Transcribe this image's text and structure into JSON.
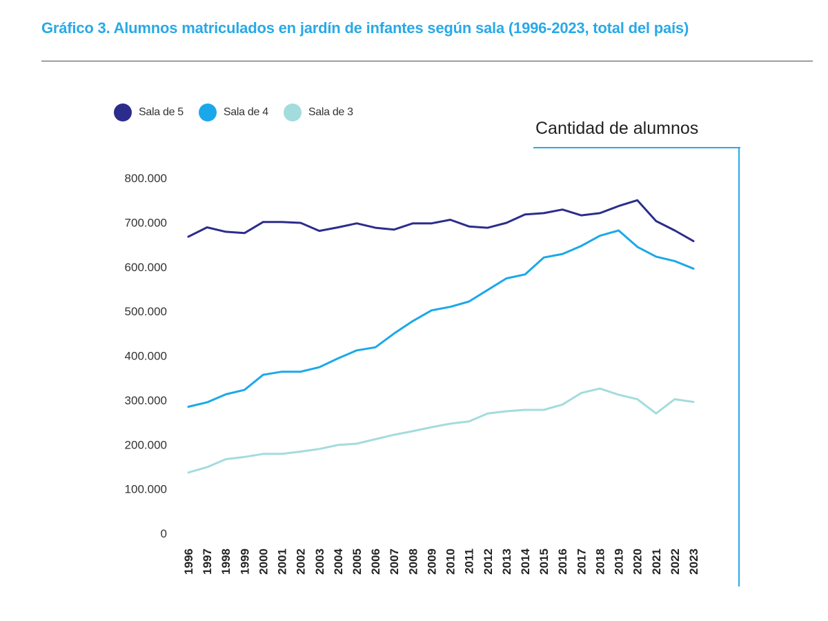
{
  "title": "Gráfico 3. Alumnos matriculados en jardín de infantes según sala (1996-2023, total del país)",
  "box_title": "Cantidad de alumnos",
  "colors": {
    "title": "#29a9e6",
    "frame": "#29a9e6"
  },
  "chart_data": {
    "type": "line",
    "title": "Gráfico 3. Alumnos matriculados en jardín de infantes según sala (1996-2023, total del país)",
    "ylabel": "Cantidad de alumnos",
    "xlabel": "",
    "ylim": [
      0,
      800000
    ],
    "yticks": [
      0,
      100000,
      200000,
      300000,
      400000,
      500000,
      600000,
      700000,
      800000
    ],
    "ytick_labels": [
      "0",
      "100.000",
      "200.000",
      "300.000",
      "400.000",
      "500.000",
      "600.000",
      "700.000",
      "800.000"
    ],
    "categories": [
      "1996",
      "1997",
      "1998",
      "1999",
      "2000",
      "2001",
      "2002",
      "2003",
      "2004",
      "2005",
      "2006",
      "2007",
      "2008",
      "2009",
      "2010",
      "2011",
      "2012",
      "2013",
      "2014",
      "2015",
      "2016",
      "2017",
      "2018",
      "2019",
      "2020",
      "2021",
      "2022",
      "2023"
    ],
    "grid": false,
    "legend_position": "top-left",
    "series": [
      {
        "name": "Sala de 5",
        "color": "#2c2c8c",
        "values": [
          668000,
          689000,
          679000,
          676000,
          701000,
          701000,
          699000,
          681000,
          689000,
          698000,
          688000,
          684000,
          698000,
          698000,
          706000,
          691000,
          688000,
          699000,
          718000,
          721000,
          729000,
          716000,
          721000,
          737000,
          750000,
          703000,
          682000,
          658000
        ]
      },
      {
        "name": "Sala de 4",
        "color": "#1aa8ea",
        "values": [
          285000,
          295000,
          313000,
          323000,
          357000,
          364000,
          364000,
          374000,
          394000,
          412000,
          419000,
          450000,
          478000,
          502000,
          510000,
          522000,
          548000,
          574000,
          583000,
          621000,
          629000,
          647000,
          670000,
          682000,
          645000,
          623000,
          613000,
          596000
        ]
      },
      {
        "name": "Sala de 3",
        "color": "#a3dcdc",
        "values": [
          137000,
          149000,
          167000,
          172000,
          179000,
          179000,
          184000,
          190000,
          199000,
          202000,
          212000,
          222000,
          230000,
          239000,
          247000,
          252000,
          270000,
          275000,
          278000,
          278000,
          290000,
          316000,
          326000,
          312000,
          302000,
          270000,
          302000,
          296000
        ]
      }
    ]
  }
}
